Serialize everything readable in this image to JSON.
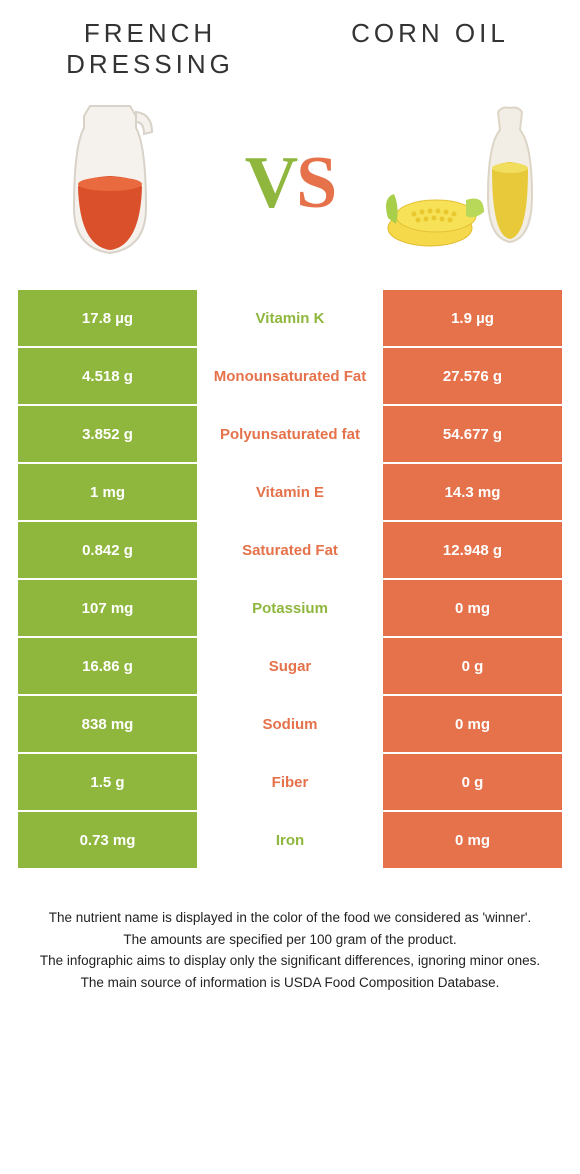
{
  "colors": {
    "left_cell": "#8fb73e",
    "right_cell": "#e5724a",
    "vs_left": "#8fb73e",
    "vs_right": "#e5724a"
  },
  "titles": {
    "left_line1": "French",
    "left_line2": "Dressing",
    "right": "Corn oil"
  },
  "vs": "VS",
  "rows": [
    {
      "left": "17.8 µg",
      "label": "Vitamin K",
      "right": "1.9 µg",
      "winner": "left"
    },
    {
      "left": "4.518 g",
      "label": "Monounsaturated Fat",
      "right": "27.576 g",
      "winner": "right"
    },
    {
      "left": "3.852 g",
      "label": "Polyunsaturated fat",
      "right": "54.677 g",
      "winner": "right"
    },
    {
      "left": "1 mg",
      "label": "Vitamin E",
      "right": "14.3 mg",
      "winner": "right"
    },
    {
      "left": "0.842 g",
      "label": "Saturated Fat",
      "right": "12.948 g",
      "winner": "right"
    },
    {
      "left": "107 mg",
      "label": "Potassium",
      "right": "0 mg",
      "winner": "left"
    },
    {
      "left": "16.86 g",
      "label": "Sugar",
      "right": "0 g",
      "winner": "right"
    },
    {
      "left": "838 mg",
      "label": "Sodium",
      "right": "0 mg",
      "winner": "right"
    },
    {
      "left": "1.5 g",
      "label": "Fiber",
      "right": "0 g",
      "winner": "right"
    },
    {
      "left": "0.73 mg",
      "label": "Iron",
      "right": "0 mg",
      "winner": "left"
    }
  ],
  "footnotes": [
    "The nutrient name is displayed in the color of the food we considered as 'winner'.",
    "The amounts are specified per 100 gram of the product.",
    "The infographic aims to display only the significant differences, ignoring minor ones.",
    "The main source of information is USDA Food Composition Database."
  ]
}
